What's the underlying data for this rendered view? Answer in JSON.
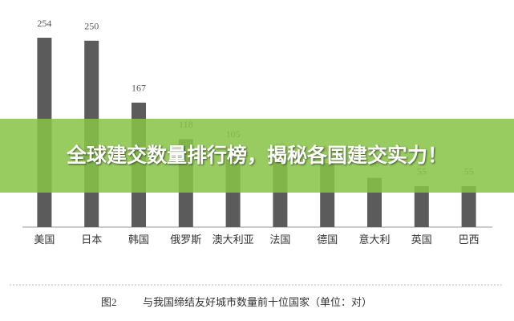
{
  "chart_data": {
    "type": "bar",
    "banner": "全球建交数量排行榜，揭秘各国建交实力！",
    "figure_label": "图2",
    "caption": "与我国缔结友好城市数量前十位国家（单位：对）",
    "categories": [
      "美国",
      "日本",
      "韩国",
      "俄罗斯",
      "澳大利亚",
      "法国",
      "德国",
      "意大利",
      "英国",
      "巴西"
    ],
    "values": [
      254,
      250,
      167,
      118,
      105,
      89,
      86,
      66,
      55,
      55
    ],
    "color": "#5b5b5b"
  }
}
